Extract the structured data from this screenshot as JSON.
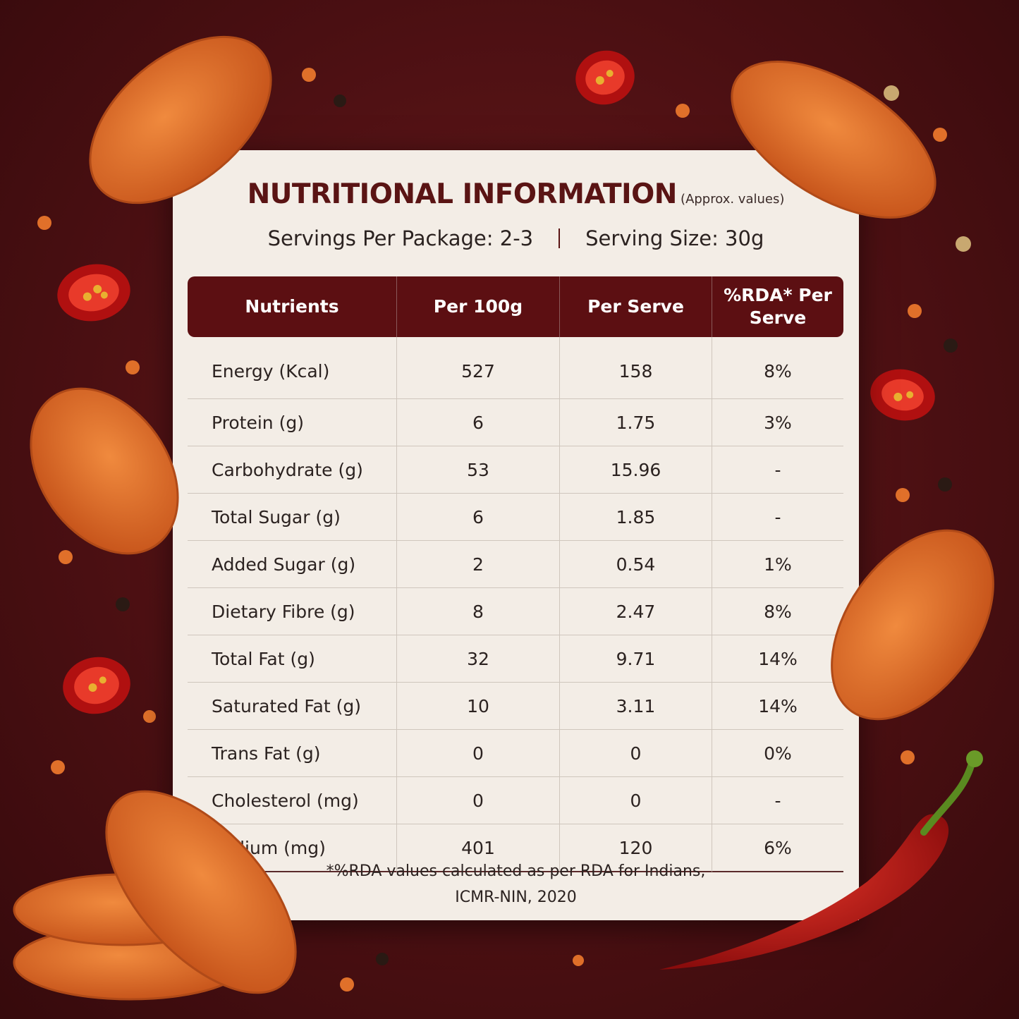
{
  "header": {
    "title": "NUTRITIONAL INFORMATION",
    "note": "(Approx. values)"
  },
  "servings": {
    "per_package": "Servings Per Package: 2-3",
    "serving_size": "Serving Size: 30g"
  },
  "table": {
    "headers": [
      "Nutrients",
      "Per 100g",
      "Per Serve",
      "%RDA* Per Serve"
    ],
    "rows": [
      [
        "Energy (Kcal)",
        "527",
        "158",
        "8%"
      ],
      [
        "Protein (g)",
        "6",
        "1.75",
        "3%"
      ],
      [
        "Carbohydrate (g)",
        "53",
        "15.96",
        "-"
      ],
      [
        "Total Sugar (g)",
        "6",
        "1.85",
        "-"
      ],
      [
        "Added Sugar (g)",
        "2",
        "0.54",
        "1%"
      ],
      [
        "Dietary Fibre (g)",
        "8",
        "2.47",
        "8%"
      ],
      [
        "Total Fat (g)",
        "32",
        "9.71",
        "14%"
      ],
      [
        "Saturated Fat (g)",
        "10",
        "3.11",
        "14%"
      ],
      [
        "Trans Fat (g)",
        "0",
        "0",
        "0%"
      ],
      [
        "Cholesterol (mg)",
        "0",
        "0",
        "-"
      ],
      [
        "Sodium (mg)",
        "401",
        "120",
        "6%"
      ]
    ]
  },
  "footnote": [
    "*%RDA values calculated as per RDA for Indians,",
    "ICMR-NIN, 2020"
  ]
}
